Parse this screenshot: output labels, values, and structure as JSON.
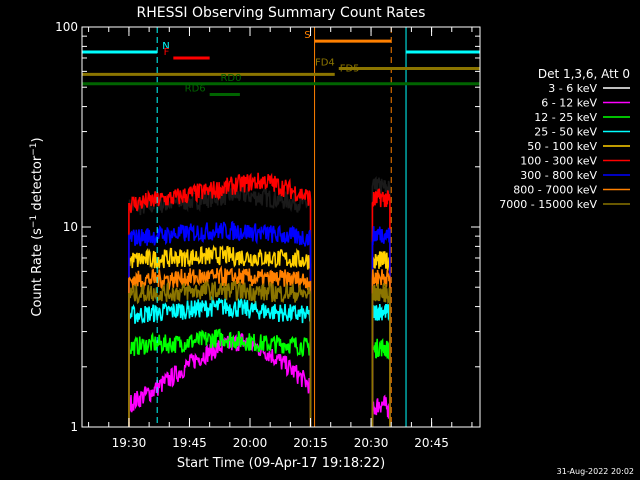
{
  "chart_data": {
    "type": "line",
    "title": "RHESSI Observing Summary Count Rates",
    "xlabel": "Start Time (09-Apr-17 19:18:22)",
    "ylabel": "Count Rate (s⁻¹ detector⁻¹)",
    "ylabel_parts": {
      "base": "Count Rate (s",
      "exp1": "−1",
      "mid": " detector",
      "exp2": "−1",
      "end": ")"
    },
    "x_scale": "time",
    "y_scale": "log",
    "xlim": [
      "19:18:22",
      "20:57:00"
    ],
    "ylim": [
      1,
      100
    ],
    "x_ticks": [
      "19:30",
      "19:45",
      "20:00",
      "20:15",
      "20:30",
      "20:45"
    ],
    "y_ticks": [
      {
        "value": 1,
        "label": "1"
      },
      {
        "value": 10,
        "label": "10"
      },
      {
        "value": 100,
        "label": "100"
      }
    ],
    "legend_header": "Det 1,3,6, Att 0",
    "legend_position": "right",
    "series": [
      {
        "name": "3 - 6 keV",
        "color": "#000000",
        "segments": [
          {
            "x_start": "19:30:00",
            "x_end": "20:15:00",
            "values": [
              12.5,
              12.8,
              13.2,
              13.6,
              14.2,
              14.5,
              14.0,
              13.5,
              13.0
            ]
          },
          {
            "x_start": "20:30:20",
            "x_end": "20:34:40",
            "values": [
              15.5,
              16.0,
              15.8,
              15.5
            ]
          }
        ]
      },
      {
        "name": "6 - 12 keV",
        "color": "#ff00ff",
        "segments": [
          {
            "x_start": "19:30:00",
            "x_end": "20:15:00",
            "values": [
              1.3,
              1.5,
              1.8,
              2.2,
              2.5,
              2.7,
              2.4,
              2.0,
              1.6
            ]
          },
          {
            "x_start": "20:30:20",
            "x_end": "20:34:40",
            "values": [
              1.2,
              1.3,
              1.3,
              1.2
            ]
          }
        ]
      },
      {
        "name": "12 - 25 keV",
        "color": "#00ff00",
        "segments": [
          {
            "x_start": "19:30:00",
            "x_end": "20:15:00",
            "values": [
              2.5,
              2.6,
              2.6,
              2.7,
              2.8,
              2.7,
              2.6,
              2.6,
              2.5
            ]
          },
          {
            "x_start": "20:30:20",
            "x_end": "20:34:40",
            "values": [
              2.4,
              2.5,
              2.5,
              2.4
            ]
          }
        ]
      },
      {
        "name": "25 - 50 keV",
        "color": "#00ffff",
        "segments": [
          {
            "x_start": "19:30:00",
            "x_end": "20:15:00",
            "values": [
              3.6,
              3.7,
              3.8,
              3.9,
              4.0,
              3.9,
              3.8,
              3.7,
              3.6
            ]
          },
          {
            "x_start": "20:30:20",
            "x_end": "20:34:40",
            "values": [
              3.7,
              3.8,
              3.8,
              3.7
            ]
          }
        ]
      },
      {
        "name": "50 - 100 keV",
        "color": "#ffd000",
        "segments": [
          {
            "x_start": "19:30:00",
            "x_end": "20:15:00",
            "values": [
              6.8,
              6.9,
              7.0,
              7.1,
              7.2,
              7.1,
              7.0,
              6.9,
              6.8
            ]
          },
          {
            "x_start": "20:30:20",
            "x_end": "20:34:40",
            "values": [
              6.6,
              6.8,
              6.8,
              6.7
            ]
          }
        ]
      },
      {
        "name": "100 - 300 keV",
        "color": "#ff0000",
        "segments": [
          {
            "x_start": "19:30:00",
            "x_end": "20:15:00",
            "values": [
              13.0,
              13.5,
              14.0,
              14.8,
              15.5,
              16.5,
              17.0,
              15.5,
              14.0
            ]
          },
          {
            "x_start": "20:30:20",
            "x_end": "20:34:40",
            "values": [
              13.5,
              14.0,
              14.0,
              13.5
            ]
          }
        ]
      },
      {
        "name": "300 - 800 keV",
        "color": "#0000ff",
        "segments": [
          {
            "x_start": "19:30:00",
            "x_end": "20:15:00",
            "values": [
              8.8,
              9.0,
              9.2,
              9.4,
              9.6,
              9.5,
              9.3,
              9.0,
              8.8
            ]
          },
          {
            "x_start": "20:30:20",
            "x_end": "20:34:40",
            "values": [
              9.0,
              9.3,
              9.2,
              9.0
            ]
          }
        ]
      },
      {
        "name": "800 - 7000 keV",
        "color": "#ff8000",
        "segments": [
          {
            "x_start": "19:30:00",
            "x_end": "20:15:00",
            "values": [
              5.4,
              5.5,
              5.5,
              5.6,
              5.6,
              5.6,
              5.5,
              5.5,
              5.4
            ]
          },
          {
            "x_start": "20:30:20",
            "x_end": "20:34:40",
            "values": [
              5.5,
              5.6,
              5.6,
              5.5
            ]
          }
        ]
      },
      {
        "name": "7000 - 15000 keV",
        "color": "#8b7500",
        "segments": [
          {
            "x_start": "19:30:00",
            "x_end": "20:15:00",
            "values": [
              4.6,
              4.7,
              4.7,
              4.8,
              4.8,
              4.8,
              4.7,
              4.7,
              4.6
            ]
          },
          {
            "x_start": "20:30:20",
            "x_end": "20:34:40",
            "values": [
              4.6,
              4.7,
              4.7,
              4.6
            ]
          }
        ]
      }
    ],
    "flag_bars": [
      {
        "label": "N",
        "color": "#00ffff",
        "y": 75,
        "x_start": "19:18:22",
        "x_end": "19:37:00",
        "label_at": "right"
      },
      {
        "label": "",
        "color": "#00ffff",
        "y": 75,
        "x_start": "20:38:40",
        "x_end": "20:57:00",
        "label_at": "none"
      },
      {
        "label": "F",
        "color": "#ff0000",
        "y": 70,
        "x_start": "19:41:00",
        "x_end": "19:50:00",
        "label_at": "left"
      },
      {
        "label": "S",
        "color": "#ff8000",
        "y": 85,
        "x_start": "20:16:00",
        "x_end": "20:35:00",
        "label_at": "left"
      },
      {
        "label": "FD4",
        "color": "#8b7500",
        "y": 62,
        "x_start": "20:22:00",
        "x_end": "20:57:00",
        "label_at": "left"
      },
      {
        "label": "FD5",
        "color": "#8b7500",
        "y": 58,
        "x_start": "19:18:22",
        "x_end": "20:21:00",
        "label_at": "right"
      },
      {
        "label": "RD0",
        "color": "#006400",
        "y": 52,
        "x_start": "19:18:22",
        "x_end": "20:57:00",
        "label_at": "center"
      },
      {
        "label": "RD6",
        "color": "#006400",
        "y": 46,
        "x_start": "19:50:00",
        "x_end": "19:57:30",
        "label_at": "left"
      }
    ],
    "vertical_markers": [
      {
        "x": "19:18:22",
        "color": "#00ffff",
        "style": "solid"
      },
      {
        "x": "19:37:00",
        "color": "#00ffff",
        "style": "dashed"
      },
      {
        "x": "20:16:00",
        "color": "#ff8000",
        "style": "solid"
      },
      {
        "x": "20:35:00",
        "color": "#ff8000",
        "style": "dashed"
      },
      {
        "x": "20:38:40",
        "color": "#00ffff",
        "style": "solid"
      },
      {
        "x": "20:57:00",
        "color": "#00ffff",
        "style": "dashed"
      }
    ],
    "grid": false,
    "footer_date": "31-Aug-2022 20:02"
  }
}
